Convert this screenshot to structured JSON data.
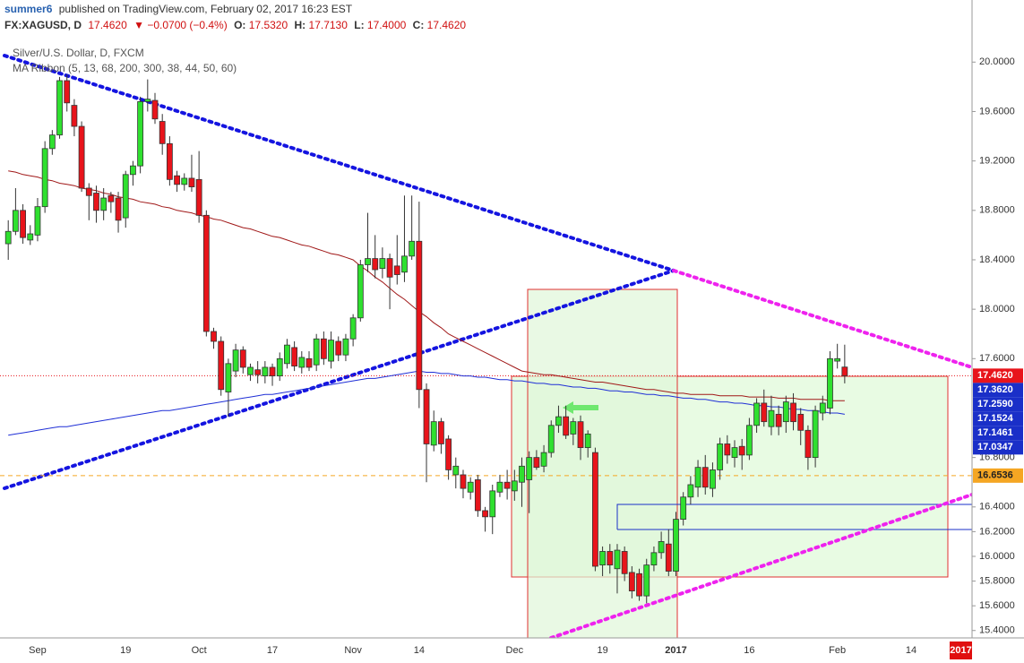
{
  "header": {
    "user": "summer6",
    "published": "published on TradingView.com, February 02, 2017 16:23 EST",
    "symbol": "FX:XAGUSD, D",
    "last": "17.4620",
    "arrow": "▼",
    "change": "−0.0700 (−0.4%)",
    "open_label": "O:",
    "open": "17.5320",
    "high_label": "H:",
    "high": "17.7130",
    "low_label": "L:",
    "low": "17.4000",
    "close_label": "C:",
    "close": "17.4620"
  },
  "chart_data": {
    "type": "candlestick",
    "title": "Silver/U.S. Dollar, D, FXCM",
    "subtitle": "MA Ribbon (5, 13, 68, 200, 300, 38, 44, 50, 60)",
    "up_color": "#2fe02f",
    "down_color": "#e8141b",
    "grid": false,
    "ylim": [
      15.34,
      20.43
    ],
    "yticks": [
      {
        "value": 20,
        "label": "20.0000"
      },
      {
        "value": 19.6,
        "label": "19.6000"
      },
      {
        "value": 19.2,
        "label": "19.2000"
      },
      {
        "value": 18.8,
        "label": "18.8000"
      },
      {
        "value": 18.4,
        "label": "18.4000"
      },
      {
        "value": 18,
        "label": "18.0000"
      },
      {
        "value": 17.6,
        "label": "17.6000"
      },
      {
        "value": 16.8,
        "label": "16.8000"
      },
      {
        "value": 16.4,
        "label": "16.4000"
      },
      {
        "value": 16.2,
        "label": "16.2000"
      },
      {
        "value": 16,
        "label": "16.0000"
      },
      {
        "value": 15.8,
        "label": "15.8000"
      },
      {
        "value": 15.6,
        "label": "15.6000"
      },
      {
        "value": 15.4,
        "label": "15.4000"
      }
    ],
    "categories": [
      null,
      null,
      null,
      null,
      "Sep",
      null,
      null,
      null,
      null,
      null,
      null,
      null,
      null,
      null,
      null,
      null,
      "19",
      null,
      null,
      null,
      null,
      null,
      null,
      null,
      null,
      null,
      "Oct",
      null,
      null,
      null,
      null,
      null,
      null,
      null,
      null,
      null,
      "17",
      null,
      null,
      null,
      null,
      null,
      null,
      null,
      null,
      null,
      null,
      "Nov",
      null,
      null,
      null,
      null,
      null,
      null,
      null,
      null,
      "14",
      null,
      null,
      null,
      null,
      null,
      null,
      null,
      null,
      null,
      null,
      null,
      null,
      "Dec",
      null,
      null,
      null,
      null,
      null,
      null,
      null,
      null,
      null,
      null,
      null,
      "19",
      null,
      null,
      null,
      null,
      null,
      null,
      null,
      null,
      null,
      "2017",
      null,
      null,
      null,
      null,
      null,
      null,
      null,
      null,
      null,
      "16",
      null,
      null,
      null,
      null,
      null,
      null,
      null,
      null,
      null,
      null,
      null,
      "Feb",
      null
    ],
    "future_labels": [
      "14"
    ],
    "axis_badge": "2017",
    "open": [
      18.53,
      18.63,
      18.8,
      18.56,
      18.6,
      18.83,
      19.3,
      19.41,
      19.85,
      19.65,
      19.48,
      18.98,
      18.94,
      18.8,
      18.92,
      18.9,
      18.74,
      19.09,
      19.16,
      19.68,
      19.69,
      19.52,
      19.34,
      19.08,
      19.01,
      19.06,
      19.05,
      18.76,
      17.82,
      17.74,
      17.33,
      17.5,
      17.67,
      17.47,
      17.51,
      17.46,
      17.53,
      17.46,
      17.56,
      17.69,
      17.53,
      17.6,
      17.55,
      17.76,
      17.58,
      17.74,
      17.63,
      17.76,
      17.93,
      18.36,
      18.41,
      18.33,
      18.41,
      18.35,
      18.3,
      18.43,
      18.55,
      17.35,
      16.9,
      17.09,
      16.95,
      16.66,
      16.66,
      16.52,
      16.62,
      16.37,
      16.32,
      16.52,
      16.6,
      16.53,
      16.6,
      16.62,
      16.8,
      16.73,
      16.84,
      17.06,
      17.13,
      16.99,
      17.09,
      16.88,
      16.84,
      15.93,
      16.04,
      15.9,
      16.04,
      15.87,
      15.86,
      15.68,
      15.93,
      16.03,
      16.1,
      15.88,
      16.3,
      16.48,
      16.56,
      16.72,
      16.55,
      16.7,
      16.91,
      16.8,
      16.89,
      16.82,
      17.06,
      17.24,
      17.05,
      17.15,
      17.09,
      17.24,
      17.15,
      17.02,
      16.8,
      17.16,
      17.2,
      17.58,
      17.532
    ],
    "high": [
      18.72,
      18.98,
      18.85,
      18.68,
      18.9,
      19.36,
      19.45,
      19.88,
      19.9,
      19.7,
      19.52,
      19.02,
      19.0,
      18.98,
      18.95,
      18.95,
      19.12,
      19.2,
      19.72,
      19.86,
      19.75,
      19.58,
      19.4,
      19.12,
      19.1,
      19.25,
      19.28,
      18.8,
      17.85,
      17.78,
      17.6,
      17.72,
      17.7,
      17.56,
      17.58,
      17.58,
      17.56,
      17.65,
      17.76,
      17.74,
      17.66,
      17.66,
      17.8,
      17.82,
      17.82,
      17.78,
      17.8,
      17.96,
      18.4,
      18.78,
      18.6,
      18.5,
      18.45,
      18.6,
      18.92,
      18.92,
      18.87,
      17.4,
      17.18,
      17.12,
      16.98,
      16.8,
      16.7,
      16.64,
      16.66,
      16.4,
      16.58,
      16.66,
      16.7,
      16.7,
      16.8,
      16.85,
      16.86,
      16.9,
      17.1,
      17.22,
      17.22,
      17.12,
      17.14,
      17.02,
      16.88,
      16.08,
      16.1,
      16.1,
      16.08,
      15.92,
      15.9,
      15.98,
      16.08,
      16.2,
      16.22,
      16.36,
      16.52,
      16.65,
      16.78,
      16.82,
      16.76,
      16.96,
      16.98,
      16.94,
      16.95,
      17.12,
      17.28,
      17.35,
      17.3,
      17.22,
      17.3,
      17.32,
      17.2,
      17.06,
      17.22,
      17.3,
      17.66,
      17.72,
      17.713
    ],
    "low": [
      18.4,
      18.6,
      18.53,
      18.52,
      18.55,
      18.78,
      19.25,
      19.38,
      19.6,
      19.4,
      18.95,
      18.72,
      18.7,
      18.72,
      18.78,
      18.62,
      18.66,
      19.0,
      19.1,
      19.6,
      19.5,
      19.25,
      19.0,
      18.95,
      18.96,
      18.95,
      18.7,
      17.78,
      17.68,
      17.3,
      17.13,
      17.45,
      17.48,
      17.42,
      17.4,
      17.4,
      17.38,
      17.42,
      17.52,
      17.5,
      17.48,
      17.5,
      17.5,
      17.55,
      17.52,
      17.58,
      17.58,
      17.7,
      17.9,
      18.3,
      18.25,
      18.25,
      18.0,
      18.2,
      18.22,
      18.4,
      17.2,
      16.6,
      16.85,
      16.83,
      16.62,
      16.55,
      16.47,
      16.46,
      16.32,
      16.2,
      16.18,
      16.48,
      16.46,
      16.45,
      16.4,
      16.35,
      16.7,
      16.68,
      16.8,
      17.0,
      16.95,
      16.9,
      16.78,
      16.8,
      15.88,
      15.84,
      15.86,
      15.7,
      15.8,
      15.66,
      15.64,
      15.62,
      15.88,
      15.98,
      15.84,
      15.84,
      16.25,
      16.42,
      16.48,
      16.5,
      16.48,
      16.62,
      16.75,
      16.72,
      16.7,
      16.78,
      17.0,
      17.05,
      16.98,
      16.98,
      17.0,
      17.02,
      16.9,
      16.7,
      16.72,
      17.1,
      17.15,
      17.52,
      17.4
    ],
    "close": [
      18.63,
      18.8,
      18.58,
      18.61,
      18.83,
      19.3,
      19.41,
      19.85,
      19.67,
      19.48,
      18.98,
      18.92,
      18.8,
      18.9,
      18.87,
      18.72,
      19.09,
      19.16,
      19.68,
      19.7,
      19.54,
      19.34,
      19.05,
      19.01,
      19.06,
      18.99,
      18.76,
      17.82,
      17.74,
      17.35,
      17.56,
      17.67,
      17.53,
      17.53,
      17.47,
      17.53,
      17.46,
      17.6,
      17.71,
      17.54,
      17.61,
      17.53,
      17.76,
      17.6,
      17.75,
      17.63,
      17.76,
      17.93,
      18.36,
      18.41,
      18.32,
      18.41,
      18.26,
      18.28,
      18.43,
      18.55,
      17.35,
      16.91,
      17.09,
      16.91,
      16.7,
      16.73,
      16.55,
      16.6,
      16.37,
      16.32,
      16.53,
      16.6,
      16.55,
      16.61,
      16.73,
      16.8,
      16.72,
      16.84,
      17.06,
      17.13,
      16.98,
      17.09,
      16.88,
      16.99,
      15.92,
      16.04,
      15.93,
      16.05,
      15.86,
      15.72,
      15.68,
      15.93,
      16.03,
      16.12,
      15.88,
      16.3,
      16.48,
      16.58,
      16.72,
      16.56,
      16.7,
      16.91,
      16.82,
      16.88,
      16.82,
      17.06,
      17.24,
      17.09,
      17.18,
      17.05,
      17.25,
      17.09,
      17.02,
      16.8,
      17.18,
      17.24,
      17.6,
      17.6,
      17.462
    ],
    "series": [
      {
        "color": "#1f2fd6",
        "values": [
          16.98,
          16.99,
          17.0,
          17.01,
          17.02,
          17.03,
          17.04,
          17.05,
          17.05,
          17.06,
          17.07,
          17.08,
          17.09,
          17.1,
          17.11,
          17.12,
          17.13,
          17.14,
          17.15,
          17.16,
          17.17,
          17.18,
          17.18,
          17.19,
          17.2,
          17.21,
          17.22,
          17.23,
          17.24,
          17.25,
          17.26,
          17.27,
          17.28,
          17.29,
          17.3,
          17.31,
          17.31,
          17.32,
          17.33,
          17.34,
          17.35,
          17.36,
          17.37,
          17.38,
          17.39,
          17.4,
          17.41,
          17.42,
          17.43,
          17.44,
          17.44,
          17.45,
          17.46,
          17.47,
          17.48,
          17.49,
          17.5,
          17.49,
          17.49,
          17.48,
          17.48,
          17.47,
          17.46,
          17.46,
          17.45,
          17.45,
          17.44,
          17.43,
          17.43,
          17.42,
          17.42,
          17.41,
          17.4,
          17.4,
          17.39,
          17.39,
          17.38,
          17.37,
          17.37,
          17.36,
          17.36,
          17.35,
          17.34,
          17.34,
          17.33,
          17.33,
          17.32,
          17.31,
          17.31,
          17.3,
          17.3,
          17.29,
          17.28,
          17.28,
          17.27,
          17.27,
          17.26,
          17.25,
          17.25,
          17.24,
          17.24,
          17.23,
          17.22,
          17.22,
          17.21,
          17.21,
          17.2,
          17.19,
          17.19,
          17.18,
          17.18,
          17.17,
          17.16,
          17.16,
          17.15
        ]
      },
      {
        "color": "#a01818",
        "values": [
          19.12,
          19.11,
          19.09,
          19.08,
          19.07,
          19.05,
          19.04,
          19.02,
          19.01,
          19.0,
          18.98,
          18.97,
          18.96,
          18.94,
          18.93,
          18.91,
          18.9,
          18.89,
          18.87,
          18.86,
          18.85,
          18.83,
          18.82,
          18.8,
          18.79,
          18.78,
          18.76,
          18.75,
          18.73,
          18.72,
          18.7,
          18.68,
          18.66,
          18.65,
          18.63,
          18.61,
          18.59,
          18.58,
          18.56,
          18.54,
          18.52,
          18.51,
          18.49,
          18.47,
          18.45,
          18.44,
          18.42,
          18.4,
          18.35,
          18.31,
          18.26,
          18.22,
          18.17,
          18.12,
          18.08,
          18.03,
          17.98,
          17.94,
          17.89,
          17.85,
          17.8,
          17.77,
          17.74,
          17.71,
          17.68,
          17.65,
          17.62,
          17.59,
          17.56,
          17.53,
          17.5,
          17.49,
          17.48,
          17.47,
          17.47,
          17.46,
          17.45,
          17.44,
          17.43,
          17.42,
          17.41,
          17.41,
          17.4,
          17.39,
          17.38,
          17.37,
          17.36,
          17.35,
          17.35,
          17.34,
          17.33,
          17.32,
          17.32,
          17.31,
          17.31,
          17.31,
          17.31,
          17.3,
          17.3,
          17.3,
          17.3,
          17.29,
          17.29,
          17.29,
          17.29,
          17.28,
          17.28,
          17.28,
          17.27,
          17.27,
          17.27,
          17.27,
          17.26,
          17.26,
          17.26
        ]
      }
    ],
    "price_tags": [
      {
        "value": 17.462,
        "label": "17.4620",
        "color": "#e8141b",
        "line": "dotted"
      },
      {
        "value": 17.362,
        "label": "17.3620",
        "color": "#1a2fc8"
      },
      {
        "value": 17.259,
        "label": "17.2590",
        "color": "#1a2fc8"
      },
      {
        "value": 17.1524,
        "label": "17.1524",
        "color": "#1a2fc8"
      },
      {
        "value": 17.1461,
        "label": "17.1461",
        "color": "#1a2fc8"
      },
      {
        "value": 17.0347,
        "label": "17.0347",
        "color": "#1a2fc8"
      },
      {
        "value": 16.6536,
        "label": "16.6536",
        "color": "#f5a623",
        "line": "dashed"
      }
    ]
  }
}
